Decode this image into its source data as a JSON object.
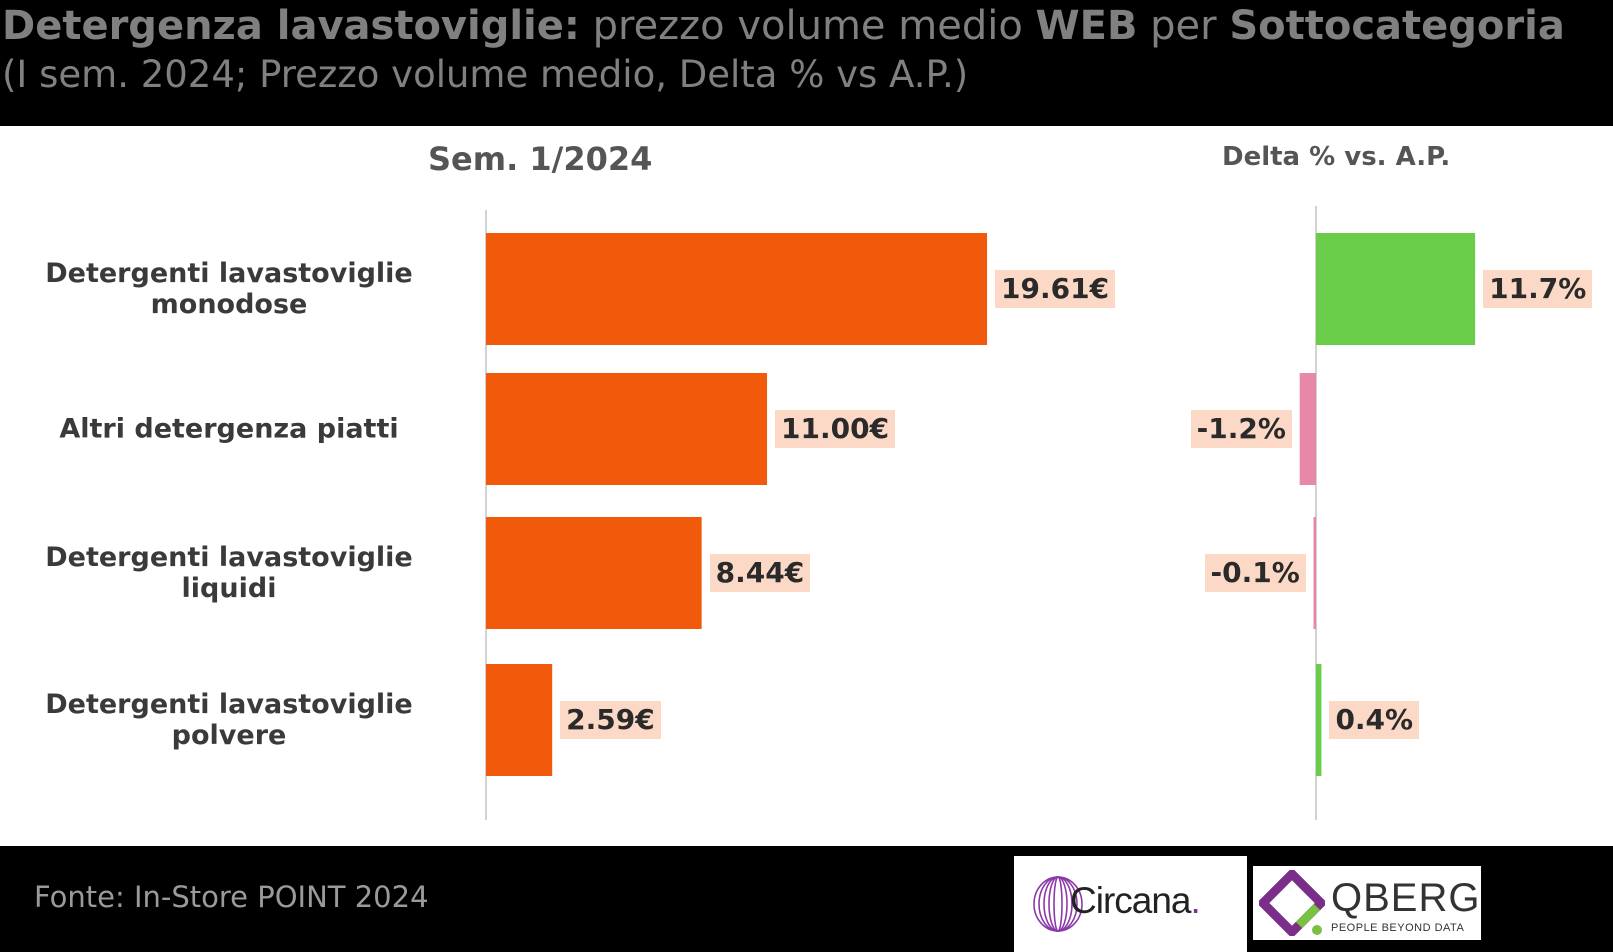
{
  "header": {
    "title_bold": "Detergenza lavastoviglie:",
    "title_rest_1": " prezzo volume medio ",
    "title_bold_2": "WEB",
    "title_rest_2": " per ",
    "title_bold_3": "Sottocategoria",
    "subtitle": "(I sem. 2024; Prezzo volume medio, Delta % vs A.P.)"
  },
  "colors": {
    "price_bar": "#f15a0a",
    "positive_delta": "#6acd4a",
    "negative_delta": "#e888a8",
    "label_bg": "#fbd9c6"
  },
  "chart_data": [
    {
      "type": "bar",
      "orientation": "horizontal",
      "title": "Sem. 1/2024",
      "categories": [
        [
          "Detergenti lavastoviglie",
          "monodose"
        ],
        [
          "Altri detergenza piatti"
        ],
        [
          "Detergenti lavastoviglie",
          "liquidi"
        ],
        [
          "Detergenti lavastoviglie",
          "polvere"
        ]
      ],
      "values": [
        19.61,
        11.0,
        8.44,
        2.59
      ],
      "value_labels": [
        "19.61€",
        "11.00€",
        "8.44€",
        "2.59€"
      ],
      "unit": "€",
      "grid": false
    },
    {
      "type": "bar",
      "orientation": "horizontal",
      "title": "Delta % vs. A.P.",
      "values": [
        11.7,
        -1.2,
        -0.1,
        0.4
      ],
      "value_labels": [
        "11.7%",
        "-1.2%",
        "-0.1%",
        "0.4%"
      ],
      "unit": "%",
      "grid": false
    }
  ],
  "footer": {
    "source": "Fonte: In-Store POINT 2024",
    "logo_circana": "Circana",
    "logo_circana_dot": ".",
    "logo_qberg": "QBERG",
    "logo_qberg_tagline": "PEOPLE BEYOND DATA"
  }
}
